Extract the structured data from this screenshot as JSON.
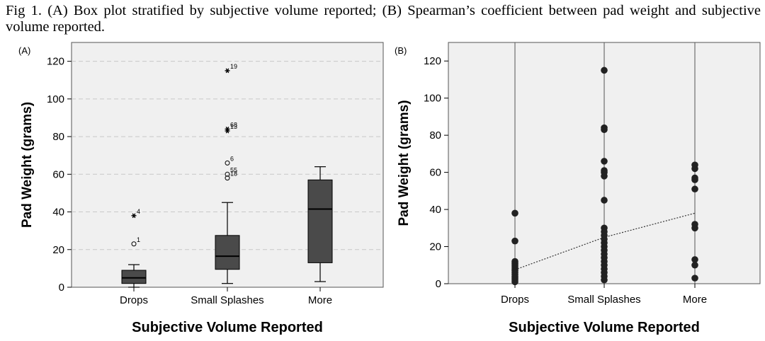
{
  "caption": "Fig 1. (A) Box plot stratified by subjective volume reported; (B) Spearman’s coefficient between pad weight and subjective volume reported.",
  "chart_data": [
    {
      "panel": "(A)",
      "type": "box",
      "xlabel": "Subjective Volume Reported",
      "ylabel": "Pad Weight (grams)",
      "categories": [
        "Drops",
        "Small Splashes",
        "More"
      ],
      "ylim": [
        0,
        130
      ],
      "yticks": [
        0,
        20,
        40,
        60,
        80,
        100,
        120
      ],
      "grid": true,
      "boxes": [
        {
          "category": "Drops",
          "min": 0,
          "q1": 2,
          "median": 5,
          "q3": 9,
          "max": 12
        },
        {
          "category": "Small Splashes",
          "min": 2,
          "q1": 9.5,
          "median": 16.5,
          "q3": 27.5,
          "max": 45
        },
        {
          "category": "More",
          "min": 3,
          "q1": 13,
          "median": 41.5,
          "q3": 57,
          "max": 64
        }
      ],
      "outliers": [
        {
          "category": "Drops",
          "value": 23,
          "label": "1",
          "marker": "circle"
        },
        {
          "category": "Drops",
          "value": 38,
          "label": "4",
          "marker": "star"
        },
        {
          "category": "Small Splashes",
          "value": 115,
          "label": "19",
          "marker": "star"
        },
        {
          "category": "Small Splashes",
          "value": 84,
          "label": "68",
          "marker": "star"
        },
        {
          "category": "Small Splashes",
          "value": 83,
          "label": "13",
          "marker": "star"
        },
        {
          "category": "Small Splashes",
          "value": 66,
          "label": "6",
          "marker": "circle"
        },
        {
          "category": "Small Splashes",
          "value": 60,
          "label": "55",
          "marker": "circle"
        },
        {
          "category": "Small Splashes",
          "value": 58,
          "label": "18",
          "marker": "circle"
        }
      ]
    },
    {
      "panel": "(B)",
      "type": "scatter",
      "xlabel": "Subjective Volume Reported",
      "ylabel": "Pad Weight (grams)",
      "categories": [
        "Drops",
        "Small Splashes",
        "More"
      ],
      "ylim": [
        0,
        130
      ],
      "yticks": [
        0,
        20,
        40,
        60,
        80,
        100,
        120
      ],
      "grid": false,
      "points": [
        {
          "category": "Drops",
          "values": [
            38,
            23,
            12,
            11,
            10,
            9,
            8,
            7,
            6,
            5,
            4,
            3,
            2,
            1
          ]
        },
        {
          "category": "Small Splashes",
          "values": [
            115,
            84,
            83,
            66,
            61,
            60,
            58,
            45,
            30,
            28,
            26,
            24,
            22,
            20,
            18,
            16,
            14,
            12,
            10,
            8,
            6,
            4,
            2
          ]
        },
        {
          "category": "More",
          "values": [
            64,
            62,
            57,
            56,
            51,
            32,
            30,
            13,
            10,
            3
          ]
        }
      ],
      "trendline": [
        {
          "category": "Drops",
          "value": 7.5
        },
        {
          "category": "Small Splashes",
          "value": 25
        },
        {
          "category": "More",
          "value": 38
        }
      ]
    }
  ]
}
